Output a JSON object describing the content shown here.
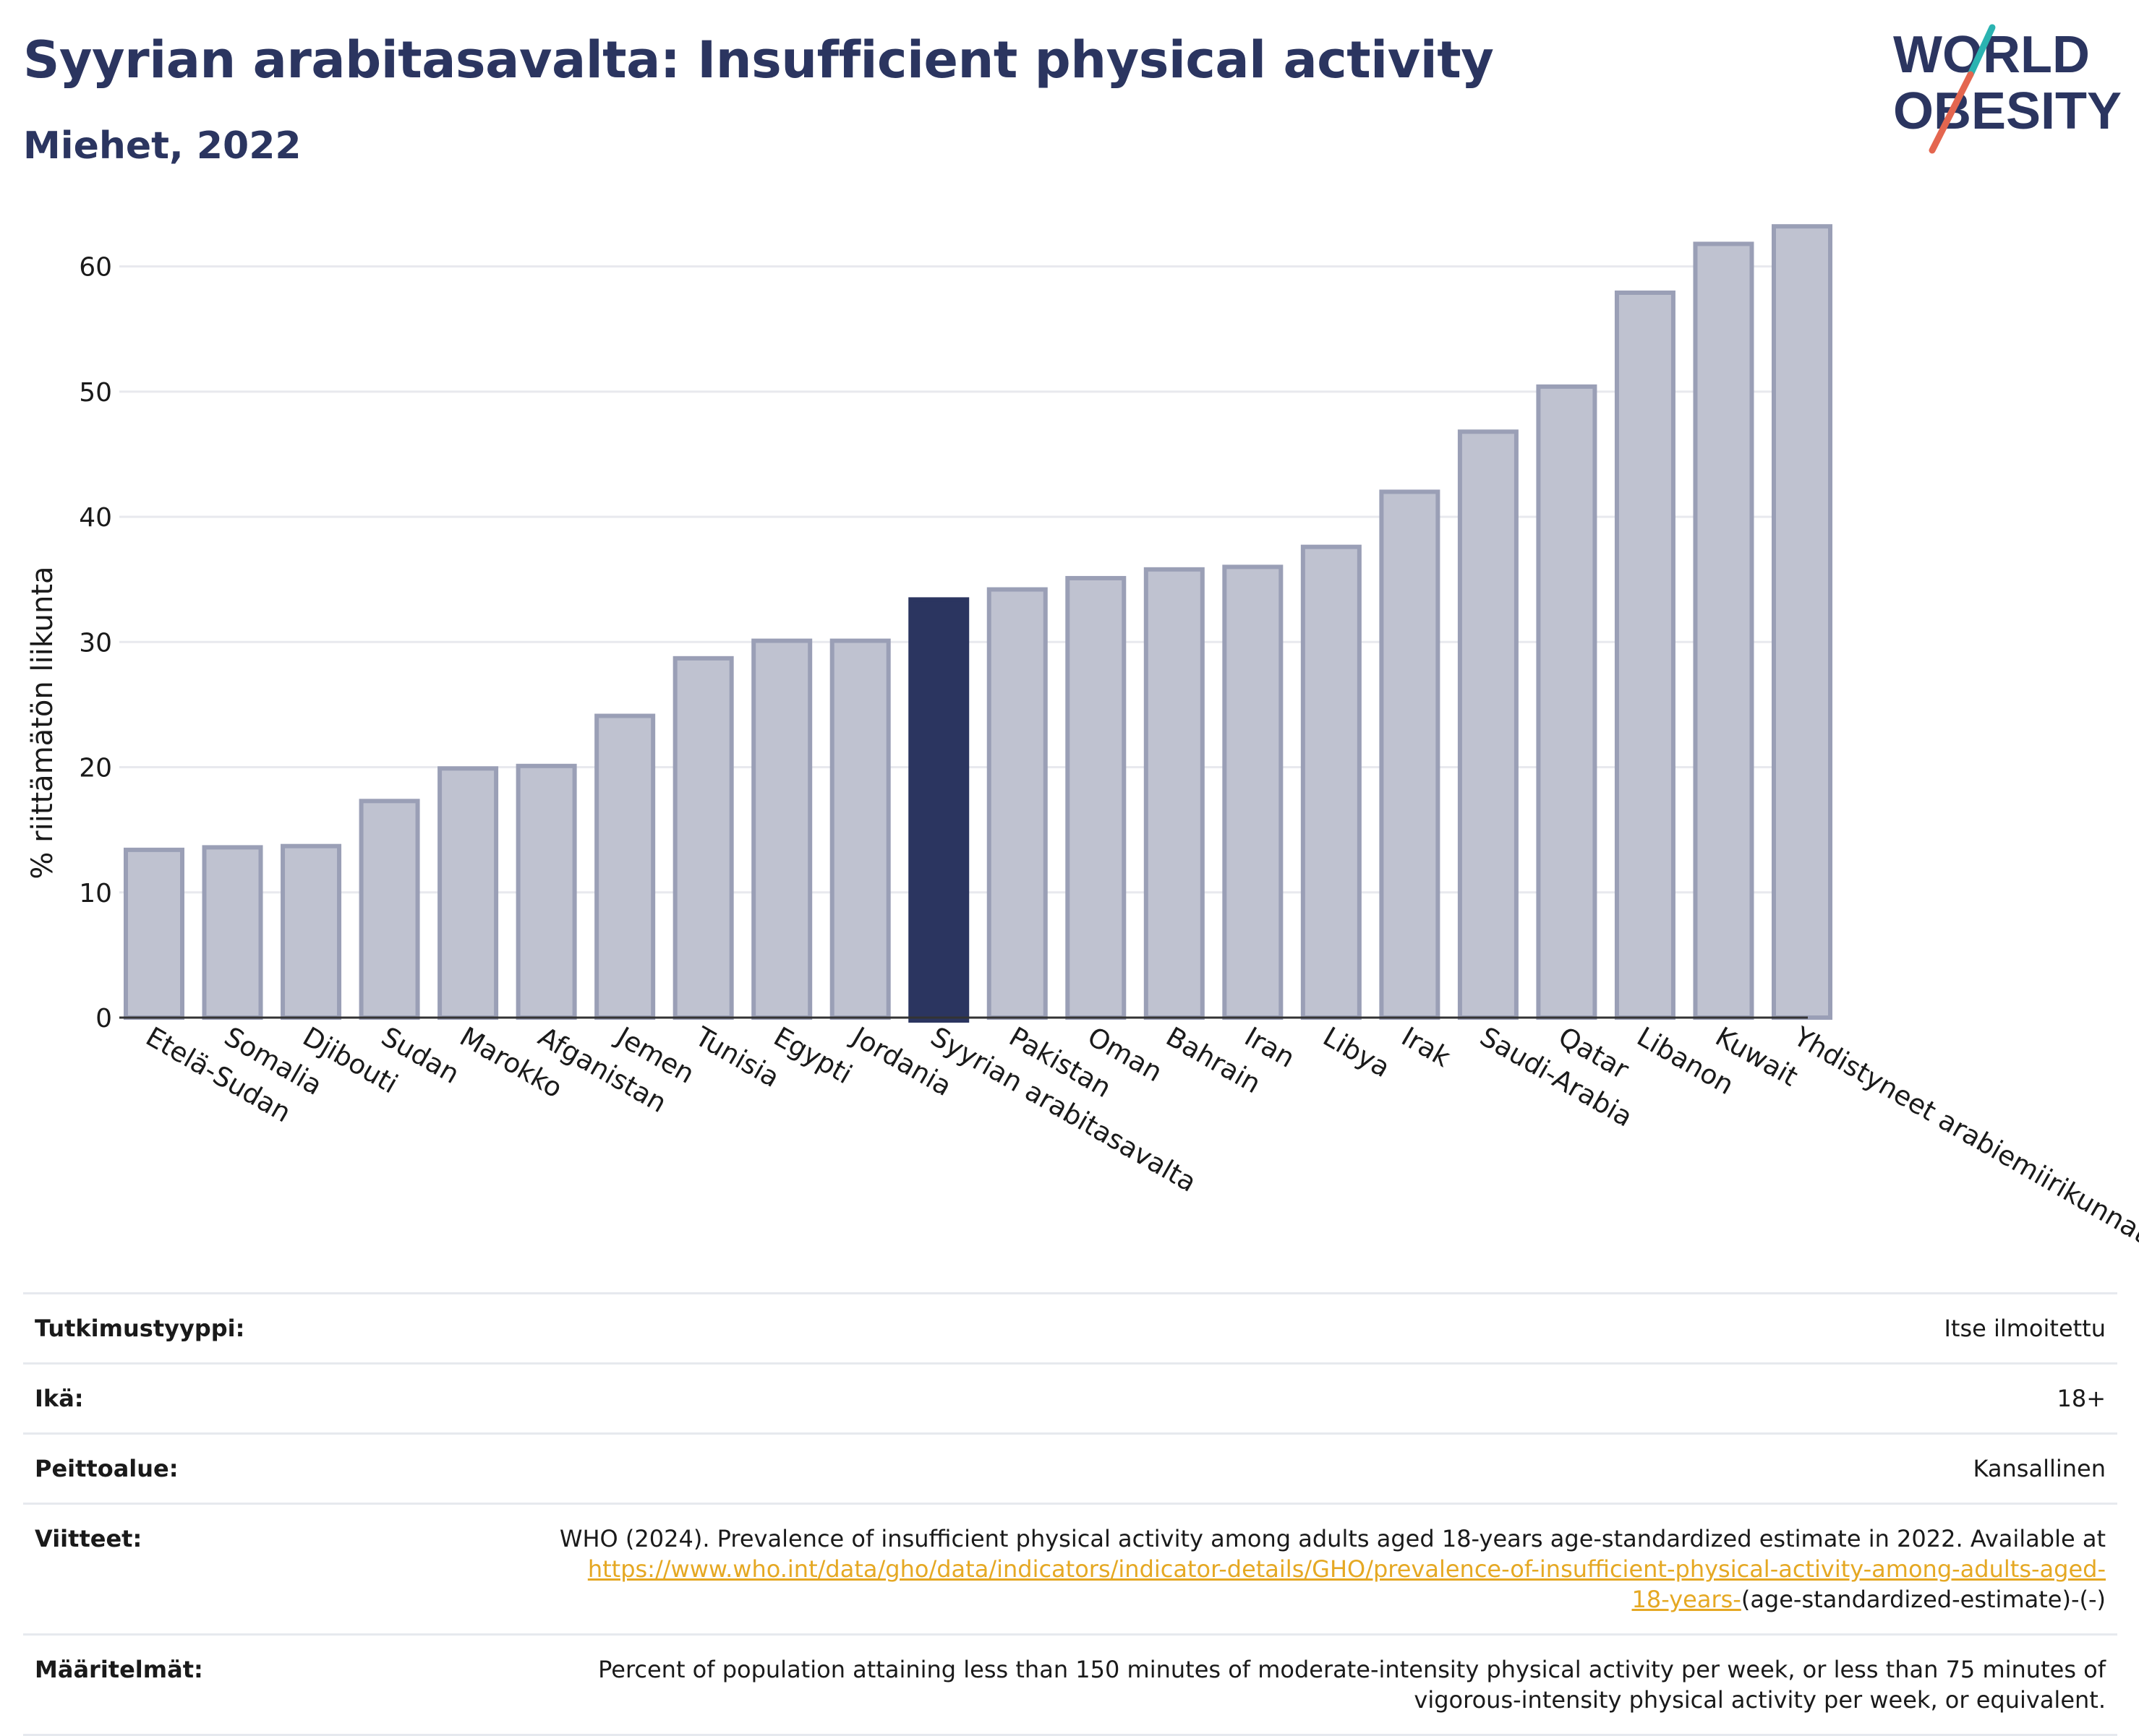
{
  "header": {
    "title": "Syyrian arabitasavalta: Insufficient physical activity",
    "subtitle": "Miehet, 2022"
  },
  "logo": {
    "line1": "WORLD",
    "line2": "OBESITY",
    "accent_top": "#2bb3b1",
    "accent_bottom": "#e4664f",
    "text_color": "#2b3560"
  },
  "colors": {
    "bar": "#bfc2d0",
    "bar_stroke": "#9a9fb6",
    "highlight": "#2b3560",
    "grid": "#e8e9ee"
  },
  "chart_data": {
    "type": "bar",
    "ylabel": "% riittämätön liikunta",
    "ylim": [
      0,
      65
    ],
    "yticks": [
      0,
      10,
      20,
      30,
      40,
      50,
      60
    ],
    "grid": true,
    "highlight": "Syyrian arabitasavalta",
    "categories": [
      "Etelä-Sudan",
      "Somalia",
      "Djibouti",
      "Sudan",
      "Marokko",
      "Afganistan",
      "Jemen",
      "Tunisia",
      "Egypti",
      "Jordania",
      "Syyrian arabitasavalta",
      "Pakistan",
      "Oman",
      "Bahrain",
      "Iran",
      "Libya",
      "Irak",
      "Saudi-Arabia",
      "Qatar",
      "Libanon",
      "Kuwait",
      "Yhdistyneet arabiemiirikunnat"
    ],
    "values": [
      13.4,
      13.6,
      13.7,
      17.3,
      19.9,
      20.1,
      24.1,
      28.7,
      30.1,
      30.1,
      33.4,
      34.2,
      35.1,
      35.8,
      36.0,
      37.6,
      42.0,
      46.8,
      50.4,
      57.9,
      61.8,
      63.2
    ]
  },
  "meta": {
    "rows": [
      {
        "label": "Tutkimustyyppi:",
        "value": "Itse ilmoitettu"
      },
      {
        "label": "Ikä:",
        "value": "18+"
      },
      {
        "label": "Peittoalue:",
        "value": "Kansallinen"
      }
    ],
    "references": {
      "label": "Viitteet:",
      "text": "WHO (2024). Prevalence of insufficient physical activity among adults aged 18-years age-standardized estimate in 2022. Available at",
      "link1": "https://www.who.int/data/gho/data/indicators/indicator-details/GHO/prevalence-of-insufficient-physical-activity-among-adults-aged-",
      "link2": "18-years-",
      "suffix": "(age-standardized-estimate)-(-)"
    },
    "definitions": {
      "label": "Määritelmät:",
      "line1": "Percent of population attaining less than 150 minutes of moderate-intensity physical activity per week, or less than 75 minutes of",
      "line2": "vigorous-intensity physical activity per week, or equivalent."
    }
  }
}
